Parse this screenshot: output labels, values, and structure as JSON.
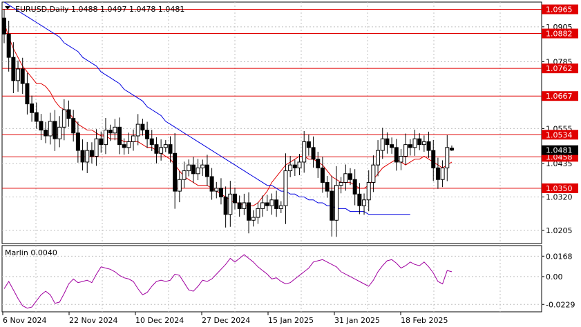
{
  "header": {
    "symbol_text": "EURUSD,Daily  1.0488 1.0497 1.0478 1.0481"
  },
  "colors": {
    "candle": "#000000",
    "level_line": "#e00000",
    "level_label_bg": "#e00000",
    "current_price_bg": "#000000",
    "ma_fast": "#e00000",
    "ma_slow": "#0000e0",
    "oscillator": "#a000a0",
    "grid": "#c0c0c0"
  },
  "chart_data": [
    {
      "type": "candlestick",
      "title": "EURUSD,Daily",
      "ylim": [
        1.016,
        1.099
      ],
      "y_ticks": [
        "1.0905",
        "1.0785",
        "1.0555",
        "1.0435",
        "1.0320",
        "1.0205"
      ],
      "x_tick_labels": [
        "6 Nov 2024",
        "22 Nov 2024",
        "10 Dec 2024",
        "27 Dec 2024",
        "15 Jan 2025",
        "31 Jan 2025",
        "18 Feb 2025"
      ],
      "levels": [
        {
          "label": "1.0965",
          "value": 1.0965
        },
        {
          "label": "1.0882",
          "value": 1.0882
        },
        {
          "label": "1.0762",
          "value": 1.0762
        },
        {
          "label": "1.0667",
          "value": 1.0667
        },
        {
          "label": "1.0534",
          "value": 1.0534
        },
        {
          "label": "1.0458",
          "value": 1.0458
        },
        {
          "label": "1.0350",
          "value": 1.035
        }
      ],
      "current_price": {
        "label": "1.0481",
        "value": 1.0481
      },
      "last_ohlc": {
        "open": 1.0488,
        "high": 1.0497,
        "low": 1.0478,
        "close": 1.0481
      },
      "closes": [
        1.088,
        1.08,
        1.072,
        1.076,
        1.071,
        1.064,
        1.061,
        1.058,
        1.055,
        1.053,
        1.058,
        1.052,
        1.056,
        1.062,
        1.059,
        1.054,
        1.048,
        1.044,
        1.048,
        1.046,
        1.052,
        1.05,
        1.055,
        1.054,
        1.056,
        1.05,
        1.049,
        1.051,
        1.053,
        1.057,
        1.055,
        1.052,
        1.05,
        1.047,
        1.049,
        1.05,
        1.047,
        1.034,
        1.038,
        1.041,
        1.043,
        1.04,
        1.042,
        1.043,
        1.039,
        1.034,
        1.035,
        1.032,
        1.026,
        1.033,
        1.03,
        1.028,
        1.03,
        1.024,
        1.025,
        1.028,
        1.03,
        1.029,
        1.031,
        1.028,
        1.029,
        1.041,
        1.043,
        1.042,
        1.044,
        1.051,
        1.049,
        1.045,
        1.042,
        1.037,
        1.034,
        1.024,
        1.036,
        1.037,
        1.04,
        1.038,
        1.033,
        1.029,
        1.031,
        1.037,
        1.043,
        1.048,
        1.052,
        1.05,
        1.049,
        1.044,
        1.046,
        1.05,
        1.049,
        1.052,
        1.05,
        1.051,
        1.048,
        1.042,
        1.038,
        1.042,
        1.049,
        1.0481
      ],
      "series": [
        {
          "name": "MA fast",
          "color": "#e00000",
          "values": [
            1.092,
            1.087,
            1.083,
            1.08,
            1.077,
            1.075,
            1.073,
            1.071,
            1.071,
            1.07,
            1.068,
            1.065,
            1.063,
            1.062,
            1.061,
            1.059,
            1.057,
            1.056,
            1.055,
            1.055,
            1.054,
            1.053,
            1.053,
            1.052,
            1.052,
            1.052,
            1.051,
            1.051,
            1.051,
            1.051,
            1.05,
            1.049,
            1.049,
            1.048,
            1.047,
            1.046,
            1.045,
            1.043,
            1.041,
            1.039,
            1.038,
            1.037,
            1.036,
            1.036,
            1.036,
            1.035,
            1.034,
            1.033,
            1.032,
            1.031,
            1.03,
            1.03,
            1.029,
            1.029,
            1.029,
            1.03,
            1.032,
            1.034,
            1.037,
            1.039,
            1.041,
            1.043,
            1.044,
            1.045,
            1.046,
            1.046,
            1.045,
            1.045,
            1.044,
            1.043,
            1.041,
            1.039,
            1.038,
            1.037,
            1.037,
            1.037,
            1.036,
            1.035,
            1.035,
            1.036,
            1.038,
            1.04,
            1.042,
            1.043,
            1.044,
            1.045,
            1.044,
            1.043,
            1.044,
            1.045,
            1.045,
            1.046,
            1.045,
            1.044,
            1.043,
            1.042,
            1.043,
            1.044
          ]
        },
        {
          "name": "MA slow",
          "color": "#0000e0",
          "values": [
            1.099,
            1.098,
            1.097,
            1.096,
            1.095,
            1.094,
            1.093,
            1.092,
            1.091,
            1.09,
            1.089,
            1.088,
            1.087,
            1.085,
            1.084,
            1.083,
            1.082,
            1.08,
            1.079,
            1.078,
            1.077,
            1.075,
            1.074,
            1.073,
            1.072,
            1.071,
            1.069,
            1.068,
            1.067,
            1.066,
            1.065,
            1.063,
            1.062,
            1.061,
            1.06,
            1.058,
            1.057,
            1.056,
            1.055,
            1.054,
            1.053,
            1.052,
            1.051,
            1.05,
            1.049,
            1.048,
            1.047,
            1.046,
            1.045,
            1.044,
            1.043,
            1.042,
            1.041,
            1.04,
            1.039,
            1.038,
            1.037,
            1.036,
            1.036,
            1.035,
            1.034,
            1.034,
            1.033,
            1.033,
            1.032,
            1.032,
            1.031,
            1.031,
            1.03,
            1.03,
            1.029,
            1.029,
            1.028,
            1.028,
            1.028,
            1.027,
            1.027,
            1.027,
            1.027,
            1.026,
            1.026,
            1.026,
            1.026,
            1.026,
            1.026,
            1.026,
            1.026,
            1.026,
            1.026
          ]
        }
      ]
    },
    {
      "type": "line",
      "title": "Marlin 0.0040",
      "ylim": [
        -0.029,
        0.0255
      ],
      "y_ticks": [
        "0.0168",
        "0.00",
        "-0.0229"
      ],
      "series": [
        {
          "name": "Marlin",
          "color": "#a000a0",
          "values": [
            -0.01,
            -0.004,
            -0.011,
            -0.018,
            -0.024,
            -0.026,
            -0.025,
            -0.02,
            -0.015,
            -0.012,
            -0.015,
            -0.022,
            -0.021,
            -0.014,
            -0.006,
            -0.002,
            -0.005,
            -0.004,
            -0.003,
            -0.005,
            0.002,
            0.008,
            0.007,
            0.006,
            0.004,
            0.001,
            -0.001,
            -0.002,
            -0.004,
            -0.01,
            -0.015,
            -0.013,
            -0.008,
            -0.004,
            -0.003,
            -0.004,
            -0.003,
            0.002,
            0.001,
            -0.005,
            -0.011,
            -0.012,
            -0.008,
            -0.003,
            -0.004,
            -0.002,
            0.002,
            0.006,
            0.01,
            0.015,
            0.012,
            0.015,
            0.018,
            0.015,
            0.012,
            0.008,
            0.005,
            0.002,
            -0.002,
            -0.001,
            -0.004,
            -0.006,
            -0.005,
            -0.002,
            0.001,
            0.004,
            0.007,
            0.012,
            0.013,
            0.014,
            0.012,
            0.01,
            0.008,
            0.004,
            0.002,
            0.0,
            -0.002,
            -0.004,
            -0.006,
            -0.008,
            -0.003,
            0.004,
            0.009,
            0.013,
            0.014,
            0.011,
            0.007,
            0.009,
            0.012,
            0.01,
            0.009,
            0.012,
            0.008,
            0.003,
            -0.004,
            -0.006,
            0.005,
            0.004
          ]
        }
      ]
    }
  ]
}
